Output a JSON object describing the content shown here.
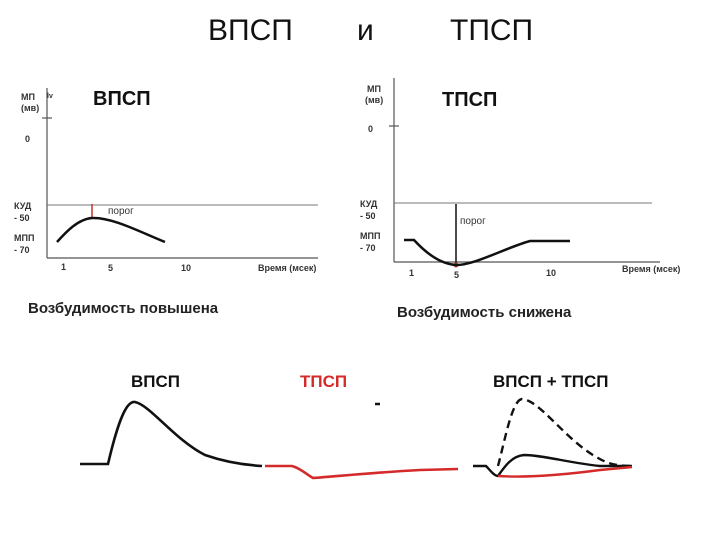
{
  "header": {
    "left": "ВПСП",
    "middle": "и",
    "right": "ТПСП"
  },
  "left_plot": {
    "title": "ВПСП",
    "y_label_1": "МП",
    "y_label_2": "(мв)",
    "y_unit_mark": "lv",
    "y_zero": "0",
    "kud_1": "КУД",
    "kud_2": "- 50",
    "mpp_1": "МПП",
    "mpp_2": "- 70",
    "threshold": "порог",
    "x_ticks": [
      "1",
      "5",
      "10"
    ],
    "x_label": "Время (мсек)",
    "caption": "Возбудимость повышена"
  },
  "right_plot": {
    "title": "ТПСП",
    "y_label_1": "МП",
    "y_label_2": "(мв)",
    "y_zero": "0",
    "kud_1": "КУД",
    "kud_2": "- 50",
    "mpp_1": "МПП",
    "mpp_2": "- 70",
    "threshold": "порог",
    "x_ticks": [
      "1",
      "5",
      "10"
    ],
    "x_label": "Время (мсек)",
    "caption": "Возбудимость снижена"
  },
  "bottom": {
    "epsp": "ВПСП",
    "ipsp": "ТПСП",
    "sum": "ВПСП + ТПСП"
  },
  "colors": {
    "ink": "#111111",
    "ipsp_red": "#d42a2a",
    "axis": "#555555"
  }
}
